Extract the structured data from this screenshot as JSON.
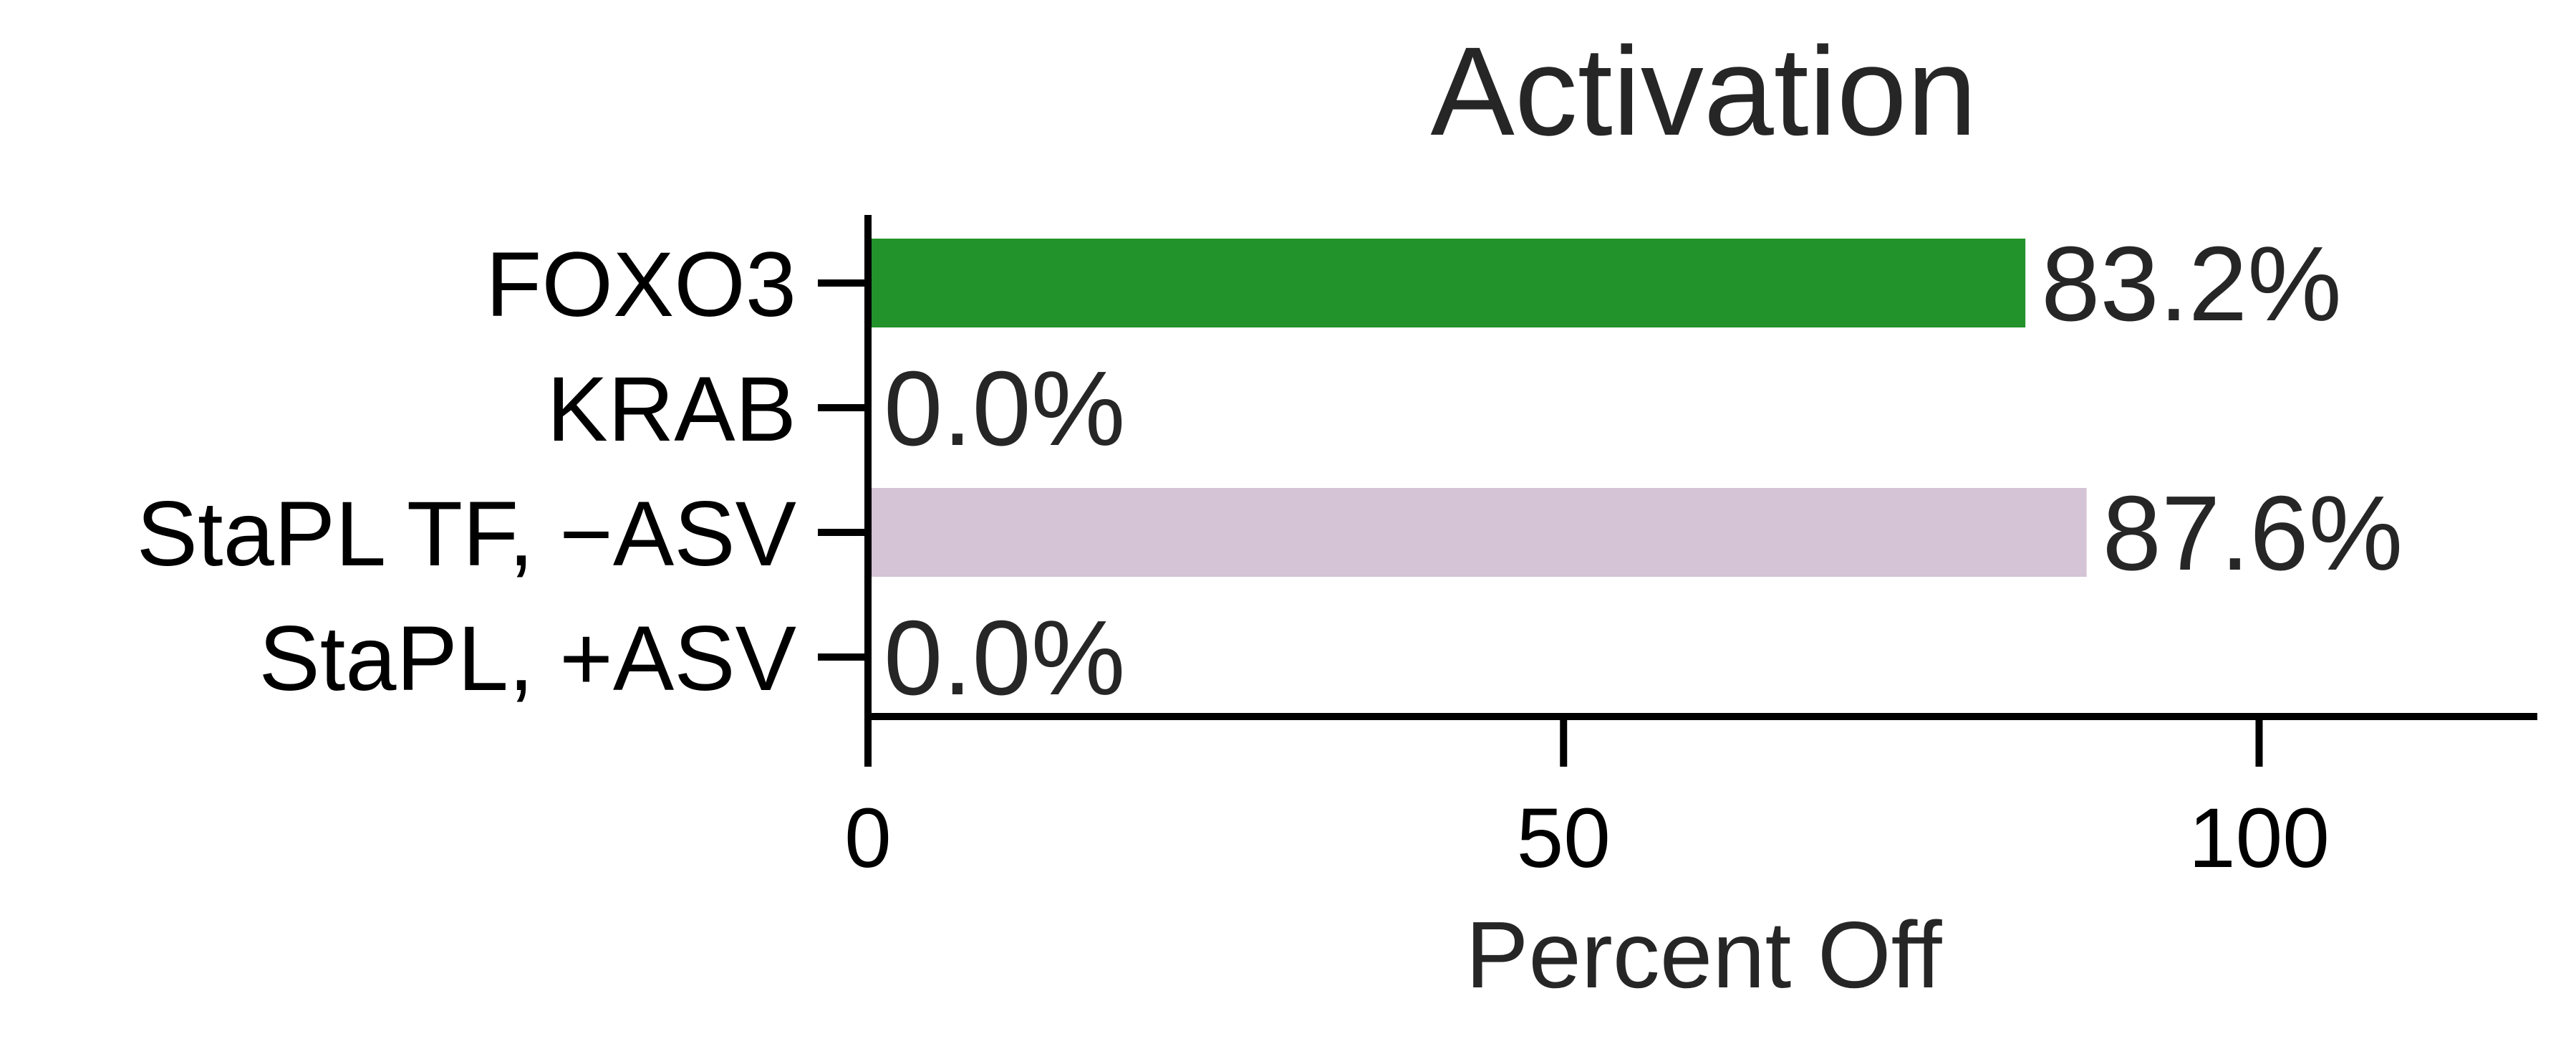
{
  "chart_data": {
    "type": "bar",
    "orientation": "horizontal",
    "title": "Activation",
    "xlabel": "Percent Off",
    "ylabel": "",
    "categories": [
      "FOXO3",
      "KRAB",
      "StaPL TF, −ASV",
      "StaPL, +ASV"
    ],
    "values": [
      83.2,
      0.0,
      87.6,
      0.0
    ],
    "data_labels": [
      "83.2%",
      "0.0%",
      "87.6%",
      "0.0%"
    ],
    "colors": [
      "#22922a",
      "#22922a",
      "#d5c3d6",
      "#d5c3d6"
    ],
    "xlim": [
      0,
      120
    ],
    "xticks": [
      0,
      50,
      100
    ],
    "xtick_labels": [
      "0",
      "50",
      "100"
    ],
    "grid": false,
    "legend": "none"
  }
}
